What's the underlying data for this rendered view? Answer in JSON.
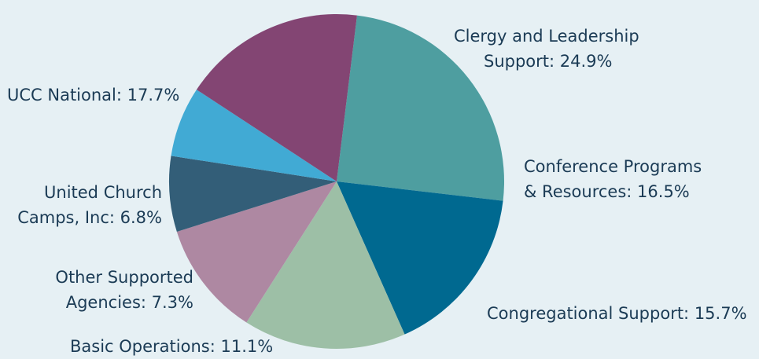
{
  "chart_data": {
    "type": "pie",
    "title": "",
    "slices": [
      {
        "line1": "Clergy and Leadership",
        "line2": "Support: 24.9%",
        "category": "Clergy and Leadership Support",
        "value": 24.9,
        "color": "#4e9ea0"
      },
      {
        "line1": "Conference Programs",
        "line2": "& Resources: 16.5%",
        "category": "Conference Programs & Resources",
        "value": 16.5,
        "color": "#006990"
      },
      {
        "line1": "Congregational Support: 15.7%",
        "line2": "",
        "category": "Congregational Support",
        "value": 15.7,
        "color": "#9dbfa6"
      },
      {
        "line1": "Basic Operations: 11.1%",
        "line2": "",
        "category": "Basic Operations",
        "value": 11.1,
        "color": "#ae88a2"
      },
      {
        "line1": "Other Supported",
        "line2": "Agencies: 7.3%",
        "category": "Other Supported Agencies",
        "value": 7.3,
        "color": "#335e78"
      },
      {
        "line1": "United Church",
        "line2": "Camps, Inc: 6.8%",
        "category": "United Church Camps, Inc",
        "value": 6.8,
        "color": "#41aad4"
      },
      {
        "line1": "UCC National: 17.7%",
        "line2": "",
        "category": "UCC National",
        "value": 17.7,
        "color": "#834573"
      }
    ]
  }
}
